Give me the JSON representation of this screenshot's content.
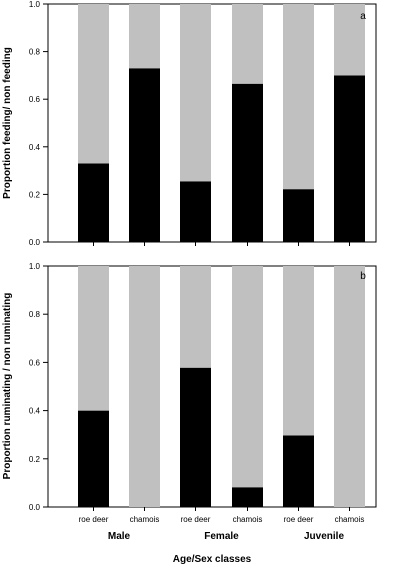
{
  "chart_data": [
    {
      "type": "bar",
      "stacked": true,
      "panel_label": "a",
      "categories": [
        "roe deer",
        "chamois",
        "roe deer",
        "chamois",
        "roe deer",
        "chamois"
      ],
      "series": [
        {
          "name": "",
          "color": "#000000",
          "values": [
            0.33,
            0.73,
            0.255,
            0.665,
            0.222,
            0.7
          ]
        },
        {
          "name": "",
          "color": "#c0c0c0",
          "values": [
            0.67,
            0.27,
            0.745,
            0.335,
            0.778,
            0.3
          ]
        }
      ],
      "ylabel": "Proportion feeding/ non feeding",
      "ylim": [
        0,
        1
      ],
      "yticks": [
        "0.0",
        "0.2",
        "0.4",
        "0.6",
        "0.8",
        "1.0"
      ],
      "grid": false
    },
    {
      "type": "bar",
      "stacked": true,
      "panel_label": "b",
      "categories": [
        "roe deer",
        "chamois",
        "roe deer",
        "chamois",
        "roe deer",
        "chamois"
      ],
      "groups": [
        "Male",
        "Female",
        "Juvenile"
      ],
      "series": [
        {
          "name": "",
          "color": "#000000",
          "values": [
            0.4,
            0.0,
            0.578,
            0.082,
            0.297,
            0.0
          ]
        },
        {
          "name": "",
          "color": "#c0c0c0",
          "values": [
            0.6,
            1.0,
            0.422,
            0.918,
            0.703,
            1.0
          ]
        }
      ],
      "xlabel": "Age/Sex classes",
      "ylabel": "Proportion ruminating / non ruminating",
      "ylim": [
        0,
        1
      ],
      "yticks": [
        "0.0",
        "0.2",
        "0.4",
        "0.6",
        "0.8",
        "1.0"
      ],
      "grid": false
    }
  ]
}
